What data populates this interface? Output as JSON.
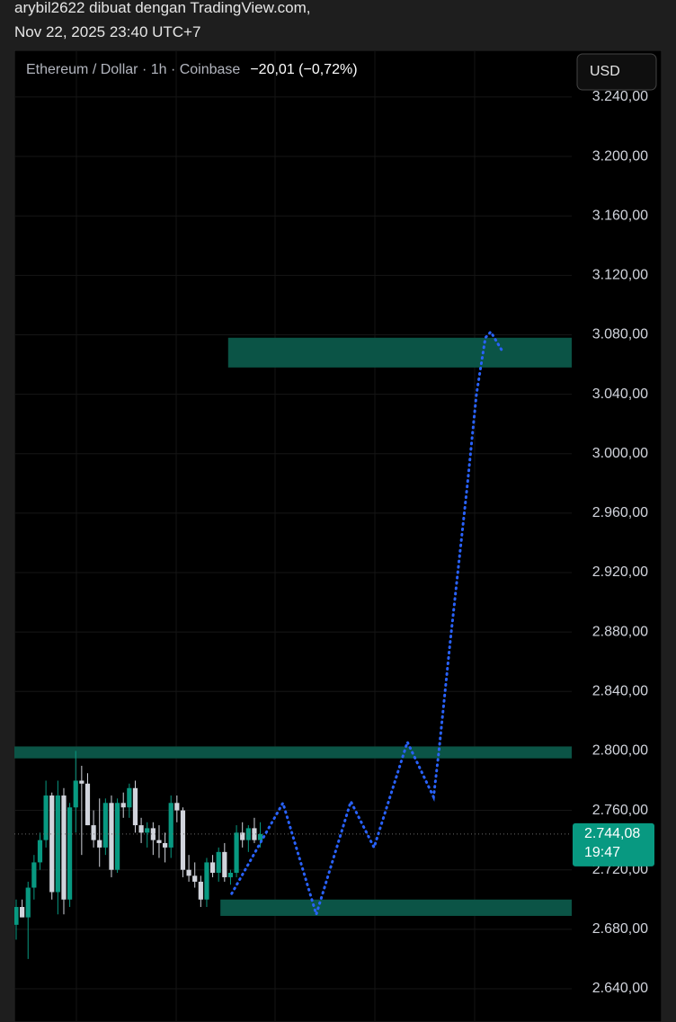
{
  "header": {
    "line1": "arybil2622 dibuat dengan TradingView.com,",
    "line2": "Nov 22, 2025 23:40 UTC+7"
  },
  "chart_data": {
    "type": "candlestick",
    "title": "Ethereum / Dollar · 1h · Coinbase",
    "change": "−20,01 (−0,72%)",
    "currency": "USD",
    "categories": [
      null,
      null,
      null,
      null,
      null,
      null,
      null,
      null,
      null,
      null,
      null,
      null,
      null,
      null,
      null,
      null,
      null,
      null,
      null,
      null,
      null,
      null,
      null,
      null,
      null,
      null,
      null,
      null,
      null,
      null,
      null,
      null,
      null,
      null,
      null,
      null,
      null,
      null,
      null,
      null,
      null,
      null
    ],
    "open": [
      2683,
      2695,
      2688,
      2708,
      2725,
      2740,
      2770,
      2705,
      2770,
      2700,
      2762,
      2780,
      2778,
      2750,
      2740,
      2735,
      2765,
      2720,
      2765,
      2762,
      2775,
      2750,
      2745,
      2748,
      2740,
      2738,
      2735,
      2765,
      2760,
      2720,
      2716,
      2712,
      2700,
      2725,
      2718,
      2732,
      2715,
      2718,
      2745,
      2740,
      2748,
      2740
    ],
    "high": [
      2700,
      2700,
      2712,
      2730,
      2745,
      2780,
      2772,
      2780,
      2775,
      2765,
      2800,
      2790,
      2785,
      2760,
      2768,
      2768,
      2770,
      2768,
      2772,
      2778,
      2780,
      2755,
      2752,
      2752,
      2750,
      2745,
      2770,
      2770,
      2762,
      2730,
      2725,
      2716,
      2728,
      2730,
      2735,
      2738,
      2720,
      2750,
      2752,
      2750,
      2755,
      2752
    ],
    "low": [
      2673,
      2688,
      2660,
      2700,
      2720,
      2735,
      2700,
      2690,
      2690,
      2695,
      2745,
      2730,
      2750,
      2735,
      2722,
      2730,
      2715,
      2718,
      2755,
      2755,
      2745,
      2738,
      2735,
      2730,
      2728,
      2725,
      2728,
      2752,
      2715,
      2712,
      2708,
      2695,
      2695,
      2715,
      2712,
      2712,
      2710,
      2715,
      2735,
      2732,
      2738,
      2735
    ],
    "close": [
      2695,
      2688,
      2708,
      2725,
      2740,
      2770,
      2705,
      2770,
      2700,
      2762,
      2780,
      2778,
      2750,
      2740,
      2735,
      2765,
      2720,
      2765,
      2762,
      2775,
      2750,
      2745,
      2748,
      2740,
      2738,
      2735,
      2765,
      2760,
      2720,
      2716,
      2712,
      2700,
      2725,
      2718,
      2732,
      2715,
      2718,
      2745,
      2740,
      2748,
      2740,
      2744.08
    ],
    "up_color": "#089981",
    "down_color": "#d1d4dc",
    "xlim": [
      -0.3,
      93.3
    ],
    "ylim": [
      2617.6,
      3271.4
    ],
    "yticks": [
      {
        "value": 2640,
        "label": "2.640,00"
      },
      {
        "value": 2680,
        "label": "2.680,00"
      },
      {
        "value": 2720,
        "label": "2.720,00"
      },
      {
        "value": 2760,
        "label": "2.760,00"
      },
      {
        "value": 2800,
        "label": "2.800,00"
      },
      {
        "value": 2840,
        "label": "2.840,00"
      },
      {
        "value": 2880,
        "label": "2.880,00"
      },
      {
        "value": 2920,
        "label": "2.920,00"
      },
      {
        "value": 2960,
        "label": "2.960,00"
      },
      {
        "value": 3000,
        "label": "3.000,00"
      },
      {
        "value": 3040,
        "label": "3.040,00"
      },
      {
        "value": 3080,
        "label": "3.080,00"
      },
      {
        "value": 3120,
        "label": "3.120,00"
      },
      {
        "value": 3160,
        "label": "3.160,00"
      },
      {
        "value": 3200,
        "label": "3.200,00"
      },
      {
        "value": 3240,
        "label": "3.240,00"
      }
    ],
    "grid": true,
    "zones": [
      {
        "x": [
          35.6,
          93.3
        ],
        "y": [
          3058,
          3078
        ]
      },
      {
        "x": [
          -0.3,
          93.3
        ],
        "y": [
          2795,
          2803
        ]
      },
      {
        "x": [
          34.3,
          93.3
        ],
        "y": [
          2689,
          2700
        ]
      }
    ],
    "zone_color": "#0b5446",
    "projection": {
      "x": [
        36.2,
        44.8,
        50.4,
        56.2,
        60.1,
        65.7,
        70.1,
        71,
        72.8,
        75.8,
        77.3,
        78.8,
        79.7,
        81.5
      ],
      "y": [
        2704,
        2765,
        2690,
        2766,
        2735,
        2806,
        2769,
        2800,
        2870,
        2980,
        3040,
        3078,
        3082,
        3070
      ],
      "color": "#2962ff"
    },
    "last_price": {
      "value": 2744.08,
      "label": "2.744,08"
    },
    "countdown": "19:47",
    "price_color": "#089981"
  }
}
